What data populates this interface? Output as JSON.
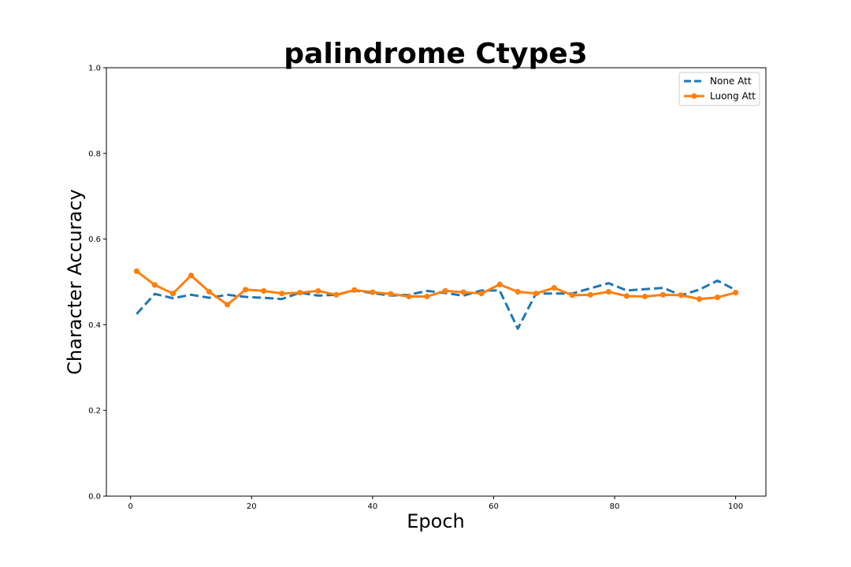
{
  "chart_data": {
    "type": "line",
    "title": "palindrome Ctype3",
    "xlabel": "Epoch",
    "ylabel": "Character Accuracy",
    "xlim": [
      -4,
      105
    ],
    "ylim": [
      0.0,
      1.0
    ],
    "xticks": [
      "0",
      "20",
      "40",
      "60",
      "80",
      "100"
    ],
    "yticks": [
      "0.0",
      "0.2",
      "0.4",
      "0.6",
      "0.8",
      "1.0"
    ],
    "grid": false,
    "legend_position": "top-right",
    "x": [
      1,
      4,
      7,
      10,
      13,
      16,
      19,
      22,
      25,
      28,
      31,
      34,
      37,
      40,
      43,
      46,
      49,
      52,
      55,
      58,
      61,
      64,
      67,
      70,
      73,
      76,
      79,
      82,
      85,
      88,
      91,
      94,
      97,
      100
    ],
    "series": [
      {
        "name": "None Att",
        "color": "#1f77b4",
        "style": "dashed",
        "markers": false,
        "values": [
          0.425,
          0.472,
          0.462,
          0.47,
          0.463,
          0.47,
          0.465,
          0.463,
          0.46,
          0.475,
          0.468,
          0.47,
          0.48,
          0.474,
          0.468,
          0.47,
          0.479,
          0.474,
          0.468,
          0.48,
          0.48,
          0.391,
          0.473,
          0.473,
          0.473,
          0.485,
          0.497,
          0.48,
          0.483,
          0.486,
          0.469,
          0.482,
          0.503,
          0.481
        ]
      },
      {
        "name": "Luong Att",
        "color": "#ff7f0e",
        "style": "solid",
        "markers": true,
        "values": [
          0.525,
          0.493,
          0.473,
          0.515,
          0.477,
          0.447,
          0.482,
          0.479,
          0.473,
          0.475,
          0.479,
          0.47,
          0.481,
          0.476,
          0.472,
          0.466,
          0.466,
          0.479,
          0.476,
          0.473,
          0.494,
          0.477,
          0.473,
          0.486,
          0.469,
          0.47,
          0.477,
          0.467,
          0.466,
          0.47,
          0.469,
          0.46,
          0.464,
          0.475
        ]
      }
    ]
  }
}
